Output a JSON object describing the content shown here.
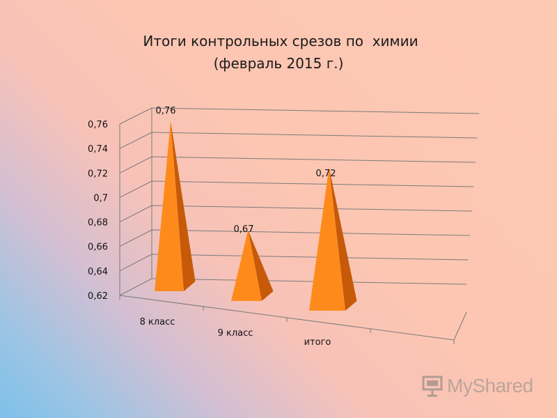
{
  "chart_data": {
    "type": "bar",
    "style": "3d-pyramid",
    "title": [
      "Итоги контрольных срезов по  химии",
      "(февраль 2015 г.)"
    ],
    "categories": [
      "8 класс",
      "9 класс",
      "итого"
    ],
    "values": [
      0.76,
      0.67,
      0.72
    ],
    "data_labels": [
      "0,76",
      "0,67",
      "0,72"
    ],
    "ylim": [
      0.62,
      0.76
    ],
    "yticks": [
      0.62,
      0.64,
      0.66,
      0.68,
      0.7,
      0.72,
      0.74,
      0.76
    ],
    "ytick_labels": [
      "0,62",
      "0,64",
      "0,66",
      "0,68",
      "0,7",
      "0,72",
      "0,74",
      "0,76"
    ],
    "grid": true,
    "legend": "none"
  },
  "colors": {
    "bar_front": "#ff8a1c",
    "bar_side": "#c65a08",
    "grid": "#7a7a7a"
  },
  "watermark": {
    "text": "MyShared",
    "icon": "presentation-board-icon"
  }
}
